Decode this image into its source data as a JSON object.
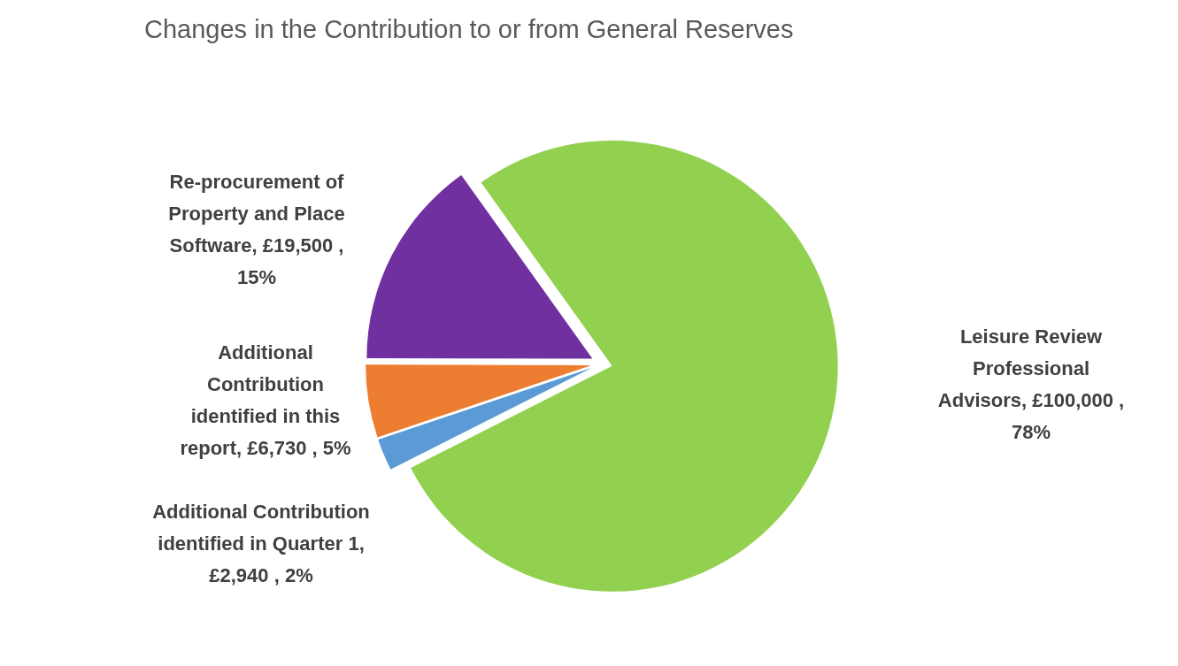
{
  "chart_data": {
    "type": "pie",
    "title": "Changes in the Contribution to or from General Reserves",
    "categories": [
      "Leisure Review Professional Advisors",
      "Additional Contribution identified in Quarter 1",
      "Additional Contribution identified in this report",
      "Re-procurement of Property and Place Software"
    ],
    "values": [
      100000,
      2940,
      6730,
      19500
    ],
    "colors": [
      "#92d050",
      "#5b9bd5",
      "#ed7d31",
      "#7030a0"
    ],
    "value_labels": [
      ",  £100,000 , 78%",
      ", £2,940 , 2%",
      ",  £6,730 , 5%",
      ", £19,500 , 15%"
    ]
  }
}
